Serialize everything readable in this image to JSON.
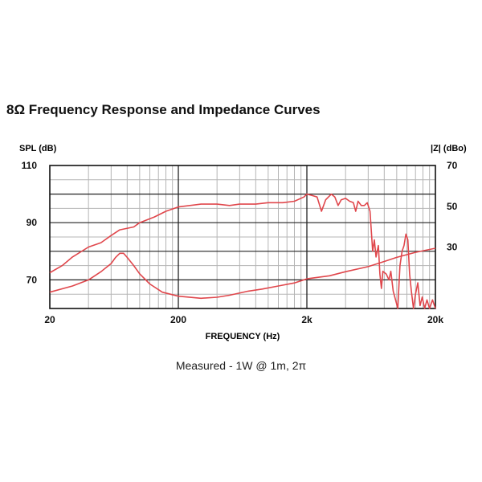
{
  "page": {
    "title": "8Ω Frequency Response and Impedance Curves",
    "caption": "Measured - 1W @ 1m, 2π"
  },
  "chart_data": {
    "type": "line",
    "xscale": "log",
    "xlim": [
      20,
      20000
    ],
    "xticks": [
      "20",
      "200",
      "2k",
      "20k"
    ],
    "xtick_values": [
      20,
      200,
      2000,
      20000
    ],
    "xlabel": "FREQUENCY (Hz)",
    "y_left": {
      "label": "SPL (dB)",
      "ylim": [
        60,
        110
      ],
      "ticks": [
        "110",
        "90",
        "70"
      ],
      "tick_values": [
        110,
        90,
        70
      ]
    },
    "y_right": {
      "label": "|Z| (dBo)",
      "ylim": [
        0,
        70
      ],
      "ticks": [
        "70",
        "50",
        "30"
      ],
      "tick_values": [
        70,
        50,
        30
      ]
    },
    "grid": true,
    "line_color": "#e0474c",
    "series": [
      {
        "axis": "left",
        "points": [
          [
            20,
            72.5
          ],
          [
            25,
            75
          ],
          [
            30,
            78
          ],
          [
            40,
            81.5
          ],
          [
            50,
            83
          ],
          [
            60,
            85.5
          ],
          [
            70,
            87.5
          ],
          [
            90,
            88.5
          ],
          [
            100,
            90
          ],
          [
            130,
            92
          ],
          [
            160,
            94
          ],
          [
            200,
            95.5
          ],
          [
            300,
            96.5
          ],
          [
            400,
            96.5
          ],
          [
            500,
            96
          ],
          [
            600,
            96.5
          ],
          [
            800,
            96.5
          ],
          [
            1000,
            97
          ],
          [
            1300,
            97
          ],
          [
            1600,
            97.5
          ],
          [
            1900,
            99
          ],
          [
            2000,
            100
          ],
          [
            2200,
            99.5
          ],
          [
            2400,
            99
          ],
          [
            2600,
            94
          ],
          [
            2800,
            98
          ],
          [
            3100,
            100
          ],
          [
            3300,
            99
          ],
          [
            3500,
            96
          ],
          [
            3700,
            98
          ],
          [
            4000,
            98.5
          ],
          [
            4300,
            97.5
          ],
          [
            4600,
            97
          ],
          [
            4800,
            94
          ],
          [
            5000,
            97.5
          ],
          [
            5300,
            96
          ],
          [
            5600,
            96
          ],
          [
            5900,
            97
          ],
          [
            6200,
            94
          ],
          [
            6500,
            80
          ],
          [
            6700,
            84
          ],
          [
            6900,
            78
          ],
          [
            7200,
            82
          ],
          [
            7400,
            72
          ],
          [
            7600,
            67
          ],
          [
            7800,
            73
          ],
          [
            8300,
            72
          ],
          [
            8700,
            70
          ],
          [
            9000,
            73
          ],
          [
            9400,
            66
          ],
          [
            9800,
            63
          ],
          [
            10200,
            60
          ],
          [
            10400,
            68
          ],
          [
            10600,
            75
          ],
          [
            11000,
            80
          ],
          [
            11400,
            82
          ],
          [
            11800,
            86
          ],
          [
            12200,
            84
          ],
          [
            12600,
            72
          ],
          [
            13000,
            66
          ],
          [
            13500,
            60
          ],
          [
            14000,
            65
          ],
          [
            14600,
            69
          ],
          [
            15200,
            61
          ],
          [
            15800,
            64
          ],
          [
            16500,
            60
          ],
          [
            17200,
            63
          ],
          [
            18000,
            60
          ],
          [
            19000,
            63
          ],
          [
            20000,
            60
          ]
        ]
      },
      {
        "axis": "right",
        "points": [
          [
            20,
            8
          ],
          [
            30,
            11
          ],
          [
            40,
            14
          ],
          [
            50,
            18
          ],
          [
            60,
            22
          ],
          [
            65,
            25
          ],
          [
            70,
            27
          ],
          [
            75,
            27
          ],
          [
            80,
            25
          ],
          [
            90,
            21
          ],
          [
            100,
            17
          ],
          [
            120,
            12
          ],
          [
            150,
            8
          ],
          [
            200,
            6
          ],
          [
            300,
            5
          ],
          [
            400,
            5.5
          ],
          [
            500,
            6.5
          ],
          [
            700,
            8.5
          ],
          [
            900,
            9.5
          ],
          [
            1200,
            11
          ],
          [
            1600,
            12.5
          ],
          [
            2000,
            14.5
          ],
          [
            3000,
            16
          ],
          [
            4000,
            18
          ],
          [
            6000,
            20.5
          ],
          [
            8000,
            23
          ],
          [
            10000,
            25
          ],
          [
            14000,
            27.5
          ],
          [
            20000,
            29.5
          ]
        ]
      }
    ]
  }
}
